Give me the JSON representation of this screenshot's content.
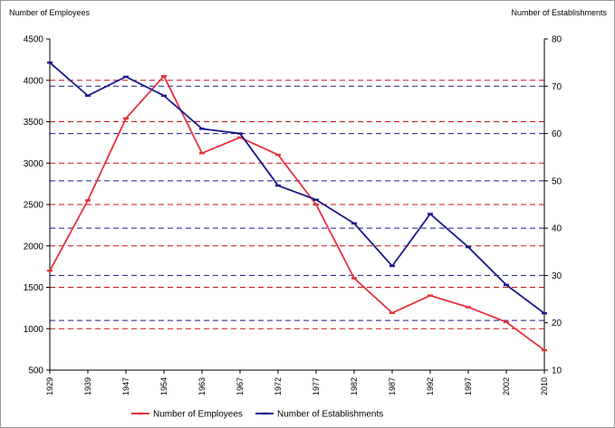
{
  "chart_data": {
    "type": "line",
    "categories": [
      "1929",
      "1939",
      "1947",
      "1954",
      "1963",
      "1967",
      "1972",
      "1977",
      "1982",
      "1987",
      "1992",
      "1997",
      "2002",
      "2010"
    ],
    "ylabel_left": "Number of Employees",
    "ylabel_right": "Number of Establishments",
    "ylim_left": [
      500,
      4500
    ],
    "ylim_right": [
      10,
      80
    ],
    "yticks_left": [
      500,
      1000,
      1500,
      2000,
      2500,
      3000,
      3500,
      4000,
      4500
    ],
    "yticks_right": [
      10,
      20,
      30,
      40,
      50,
      60,
      70,
      80
    ],
    "series": [
      {
        "name": "Number of Employees",
        "axis": "left",
        "color": "#e8323c",
        "values": [
          1700,
          2550,
          3540,
          4050,
          3120,
          3310,
          3100,
          2500,
          1610,
          1190,
          1400,
          1260,
          1080,
          740
        ]
      },
      {
        "name": "Number of Establishments",
        "axis": "right",
        "color": "#1a1a8c",
        "values": [
          75,
          68,
          72,
          68,
          61,
          60,
          49,
          46,
          41,
          32,
          43,
          36,
          28,
          22
        ]
      }
    ],
    "gridlines": {
      "red_dashed_at_left": [
        1000,
        1500,
        2000,
        2500,
        3000,
        3500,
        4000
      ],
      "blue_dashed_at_right": [
        20.5,
        30,
        40,
        50,
        60,
        70
      ]
    },
    "legend": "bottom"
  }
}
